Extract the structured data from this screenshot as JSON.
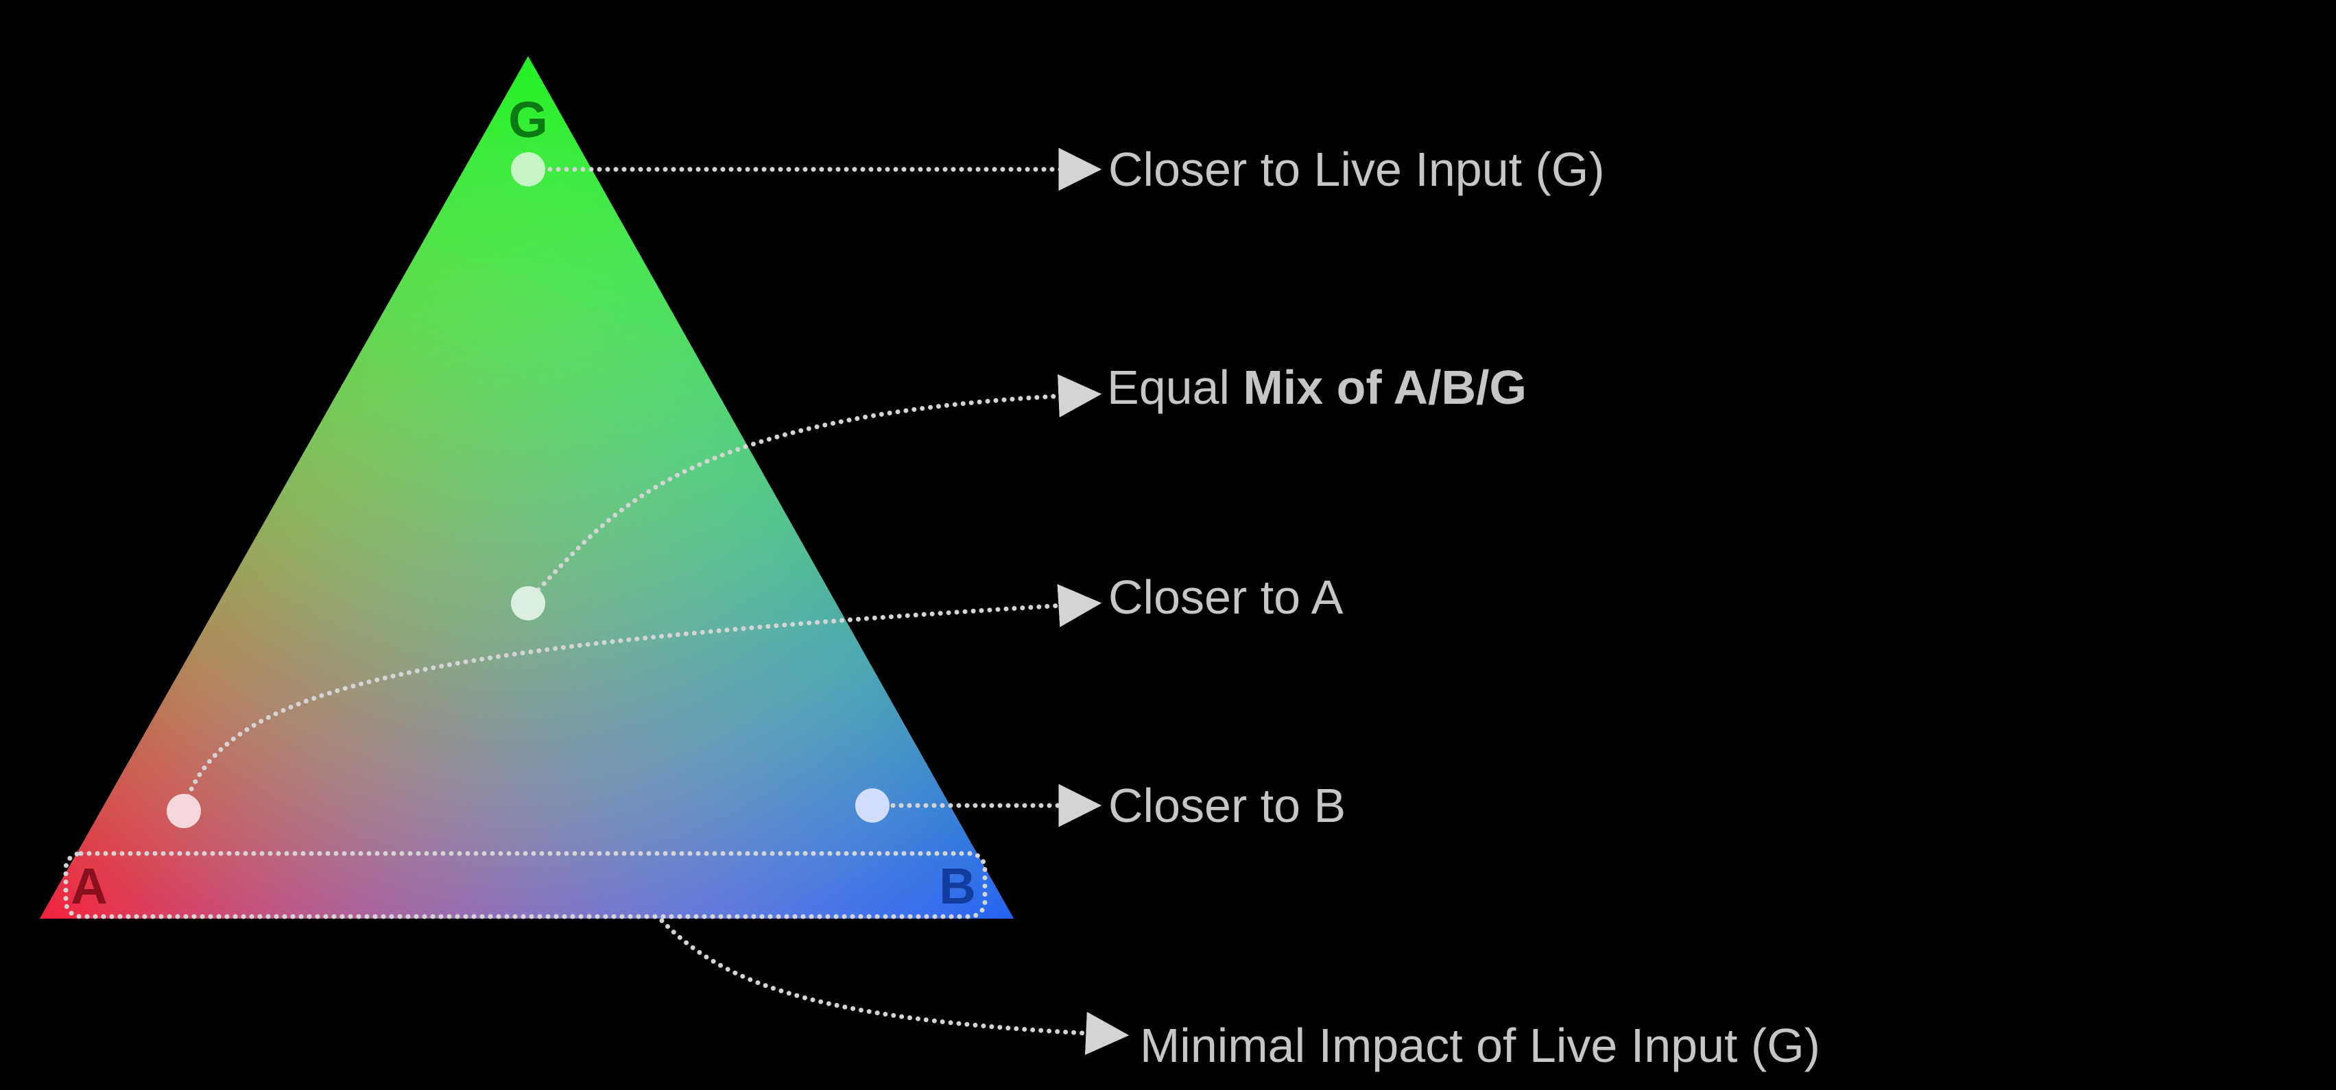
{
  "diagram": {
    "vertices": {
      "top": "G",
      "left": "A",
      "right": "B"
    },
    "vertex_colors": {
      "G": "#22f022",
      "A": "#f0213e",
      "B": "#2562f2"
    },
    "vertex_label_colors": {
      "G": "#0c7a12",
      "A": "#8a1020",
      "B": "#123c9e"
    },
    "callouts": {
      "closer_to_g": "Closer to Live Input (G)",
      "equal_mix_prefix": "Equal ",
      "equal_mix_bold": "Mix of A/B/G",
      "closer_to_a": "Closer to A",
      "closer_to_b": "Closer to B",
      "minimal_impact": "Minimal Impact of Live Input (G)"
    },
    "connector_color": "#d4d4d4",
    "text_color": "#c6c6c6"
  }
}
